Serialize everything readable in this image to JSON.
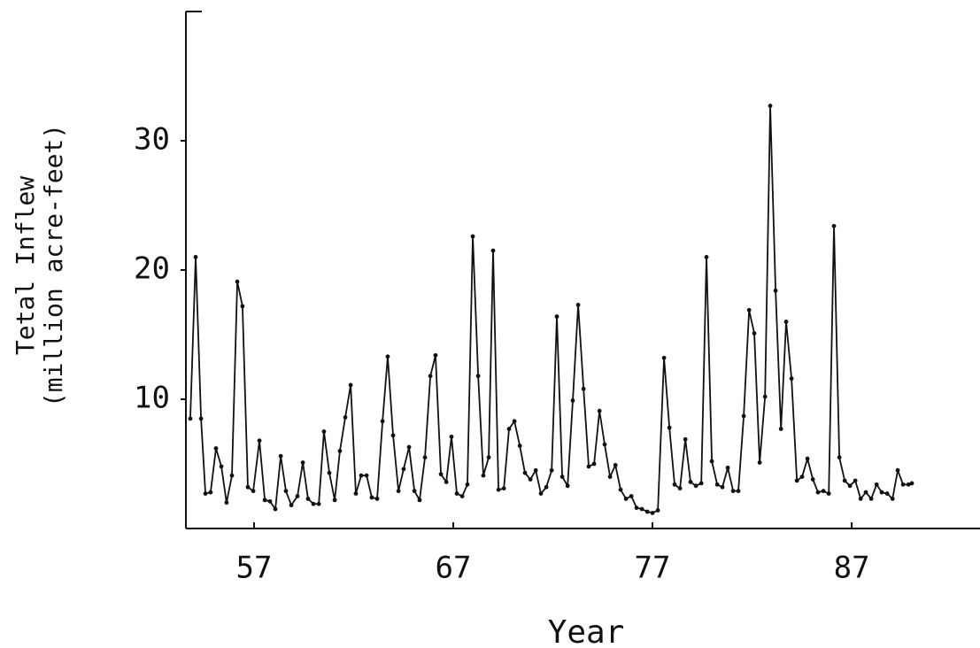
{
  "chart_data": {
    "type": "line",
    "x_label": "Year",
    "y_label": [
      "Tetal Inflew",
      "(million acre-feet)"
    ],
    "xlim": [
      53.58,
      93.44
    ],
    "ylim": [
      0,
      40
    ],
    "xticks": [
      57,
      67,
      77,
      87
    ],
    "yticks": [
      10,
      20,
      30
    ],
    "color": "#111111",
    "markers": true,
    "x": [
      53.8,
      54.07,
      54.34,
      54.56,
      54.82,
      55.09,
      55.36,
      55.62,
      55.89,
      56.16,
      56.42,
      56.69,
      56.96,
      57.27,
      57.54,
      57.8,
      58.07,
      58.34,
      58.6,
      58.87,
      59.18,
      59.45,
      59.71,
      59.98,
      60.25,
      60.51,
      60.78,
      61.05,
      61.31,
      61.58,
      61.85,
      62.11,
      62.38,
      62.65,
      62.91,
      63.18,
      63.45,
      63.71,
      63.98,
      64.25,
      64.51,
      64.78,
      65.05,
      65.31,
      65.58,
      65.85,
      66.11,
      66.38,
      66.65,
      66.91,
      67.18,
      67.45,
      67.71,
      67.98,
      68.25,
      68.51,
      68.78,
      69.0,
      69.27,
      69.54,
      69.8,
      70.07,
      70.34,
      70.6,
      70.87,
      71.14,
      71.4,
      71.67,
      71.94,
      72.2,
      72.47,
      72.74,
      73.0,
      73.27,
      73.54,
      73.8,
      74.07,
      74.34,
      74.6,
      74.87,
      75.14,
      75.4,
      75.67,
      75.94,
      76.2,
      76.47,
      76.74,
      77.0,
      77.27,
      77.58,
      77.85,
      78.11,
      78.38,
      78.65,
      78.91,
      79.18,
      79.45,
      79.71,
      79.98,
      80.25,
      80.51,
      80.78,
      81.05,
      81.31,
      81.58,
      81.85,
      82.11,
      82.38,
      82.65,
      82.91,
      83.18,
      83.45,
      83.71,
      83.98,
      84.25,
      84.51,
      84.78,
      85.05,
      85.31,
      85.58,
      85.85,
      86.11,
      86.38,
      86.65,
      86.91,
      87.18,
      87.45,
      87.71,
      87.98,
      88.25,
      88.51,
      88.78,
      89.05,
      89.31,
      89.58,
      89.85,
      90.02
    ],
    "values": [
      8.5,
      21.0,
      8.5,
      2.7,
      2.8,
      6.2,
      4.8,
      2.0,
      4.1,
      19.1,
      17.2,
      3.2,
      2.9,
      6.8,
      2.2,
      2.1,
      1.5,
      5.6,
      2.9,
      1.8,
      2.5,
      5.1,
      2.3,
      1.9,
      1.9,
      7.5,
      4.3,
      2.2,
      6.0,
      8.6,
      11.1,
      2.7,
      4.1,
      4.1,
      2.4,
      2.3,
      8.3,
      13.3,
      7.2,
      2.9,
      4.6,
      6.3,
      2.9,
      2.2,
      5.5,
      11.8,
      13.4,
      4.2,
      3.6,
      7.1,
      2.7,
      2.5,
      3.4,
      22.6,
      11.8,
      4.1,
      5.5,
      21.5,
      3.0,
      3.1,
      7.7,
      8.3,
      6.4,
      4.3,
      3.8,
      4.5,
      2.7,
      3.2,
      4.5,
      16.4,
      4.0,
      3.3,
      9.9,
      17.3,
      10.8,
      4.8,
      5.0,
      9.1,
      6.5,
      4.0,
      4.9,
      3.0,
      2.3,
      2.5,
      1.6,
      1.5,
      1.3,
      1.2,
      1.4,
      13.2,
      7.8,
      3.4,
      3.1,
      6.9,
      3.6,
      3.3,
      3.5,
      21.0,
      5.2,
      3.4,
      3.2,
      4.7,
      2.9,
      2.9,
      8.7,
      16.9,
      15.1,
      5.1,
      10.2,
      32.7,
      18.4,
      7.7,
      16.0,
      11.6,
      3.7,
      4.0,
      5.4,
      3.8,
      2.8,
      2.9,
      2.7,
      23.4,
      5.5,
      3.7,
      3.3,
      3.7,
      2.3,
      2.8,
      2.3,
      3.4,
      2.8,
      2.7,
      2.3,
      4.5,
      3.4,
      3.4,
      3.5
    ]
  }
}
